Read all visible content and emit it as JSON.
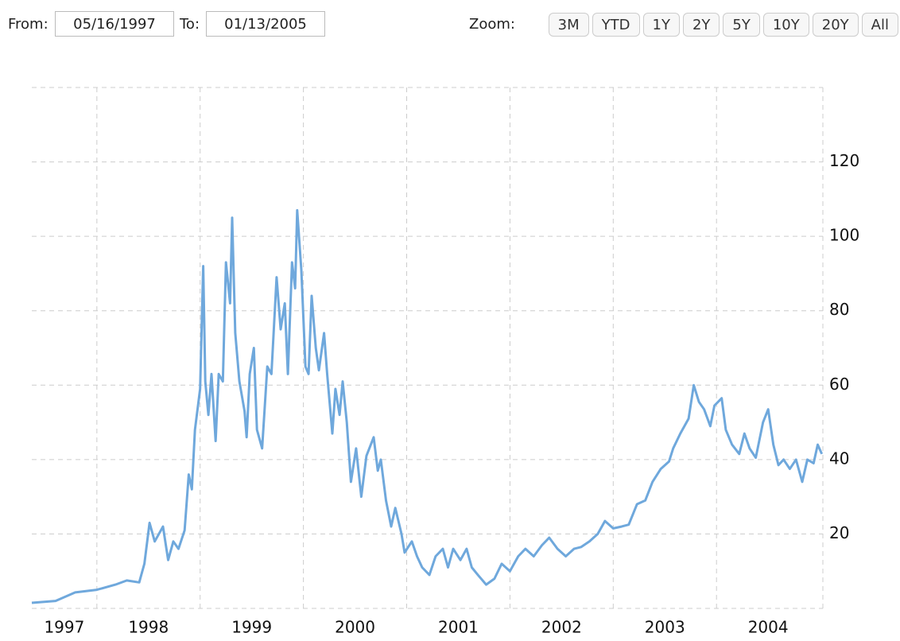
{
  "controls": {
    "from_label": "From:",
    "from_value": "05/16/1997",
    "to_label": "To:",
    "to_value": "01/13/2005",
    "zoom_label": "Zoom:",
    "zoom_buttons": [
      "3M",
      "YTD",
      "1Y",
      "2Y",
      "5Y",
      "10Y",
      "20Y",
      "All"
    ]
  },
  "chart_data": {
    "type": "line",
    "color": "#6fa8dc",
    "grid": true,
    "xlim": [
      1997.37,
      2005.03
    ],
    "xticks": [
      1997,
      1998,
      1999,
      2000,
      2001,
      2002,
      2003,
      2004
    ],
    "ylim": [
      0,
      140
    ],
    "yticks": [
      20,
      40,
      60,
      80,
      100,
      120
    ],
    "x": [
      1997.37,
      1997.6,
      1997.79,
      1998.0,
      1998.18,
      1998.29,
      1998.41,
      1998.46,
      1998.51,
      1998.56,
      1998.64,
      1998.69,
      1998.74,
      1998.79,
      1998.85,
      1998.89,
      1998.92,
      1998.95,
      1999.0,
      1999.03,
      1999.05,
      1999.08,
      1999.11,
      1999.15,
      1999.18,
      1999.22,
      1999.25,
      1999.29,
      1999.31,
      1999.34,
      1999.38,
      1999.43,
      1999.45,
      1999.48,
      1999.52,
      1999.55,
      1999.6,
      1999.65,
      1999.69,
      1999.74,
      1999.78,
      1999.82,
      1999.85,
      1999.89,
      1999.92,
      1999.94,
      1999.98,
      2000.02,
      2000.05,
      2000.08,
      2000.12,
      2000.15,
      2000.2,
      2000.23,
      2000.28,
      2000.31,
      2000.35,
      2000.38,
      2000.42,
      2000.46,
      2000.51,
      2000.56,
      2000.61,
      2000.68,
      2000.72,
      2000.75,
      2000.8,
      2000.85,
      2000.89,
      2000.95,
      2000.98,
      2001.05,
      2001.1,
      2001.15,
      2001.22,
      2001.28,
      2001.35,
      2001.4,
      2001.45,
      2001.52,
      2001.58,
      2001.63,
      2001.69,
      2001.77,
      2001.85,
      2001.92,
      2002.0,
      2002.08,
      2002.15,
      2002.23,
      2002.31,
      2002.38,
      2002.46,
      2002.54,
      2002.62,
      2002.69,
      2002.77,
      2002.85,
      2002.92,
      2003.0,
      2003.08,
      2003.15,
      2003.23,
      2003.31,
      2003.38,
      2003.46,
      2003.54,
      2003.58,
      2003.65,
      2003.73,
      2003.78,
      2003.83,
      2003.88,
      2003.94,
      2003.98,
      2004.05,
      2004.09,
      2004.15,
      2004.22,
      2004.27,
      2004.32,
      2004.38,
      2004.45,
      2004.5,
      2004.55,
      2004.6,
      2004.65,
      2004.71,
      2004.77,
      2004.83,
      2004.88,
      2004.94,
      2004.98,
      2005.02
    ],
    "values": [
      1.5,
      2,
      4.3,
      5,
      6.4,
      7.5,
      7,
      12,
      23,
      18,
      22,
      13,
      18,
      16,
      21,
      36,
      32,
      48,
      59,
      92,
      61,
      52,
      63,
      45,
      63,
      61,
      93,
      82,
      105,
      74,
      61,
      53,
      46,
      63,
      70,
      48,
      43,
      65,
      63,
      89,
      75,
      82,
      63,
      93,
      86,
      107,
      91,
      65,
      63,
      84,
      70,
      64,
      74,
      63,
      47,
      59,
      52,
      61,
      50,
      34,
      43,
      30,
      41,
      46,
      37,
      40,
      29,
      22,
      27,
      20,
      15,
      18,
      14,
      11,
      9,
      14,
      16,
      11,
      16,
      13,
      16,
      11,
      9,
      6.4,
      8,
      12,
      10,
      14,
      16,
      14,
      17,
      19,
      16,
      14,
      16,
      16.5,
      18,
      20,
      23.5,
      21.5,
      22,
      22.5,
      28,
      29,
      34,
      37.5,
      39.5,
      43,
      47,
      51,
      60,
      55.5,
      53.5,
      49,
      54.5,
      56.5,
      48,
      44,
      41.5,
      47,
      43,
      40.5,
      50,
      53.5,
      44,
      38.5,
      40,
      37.5,
      40,
      34,
      40,
      39,
      44,
      41.5
    ]
  }
}
